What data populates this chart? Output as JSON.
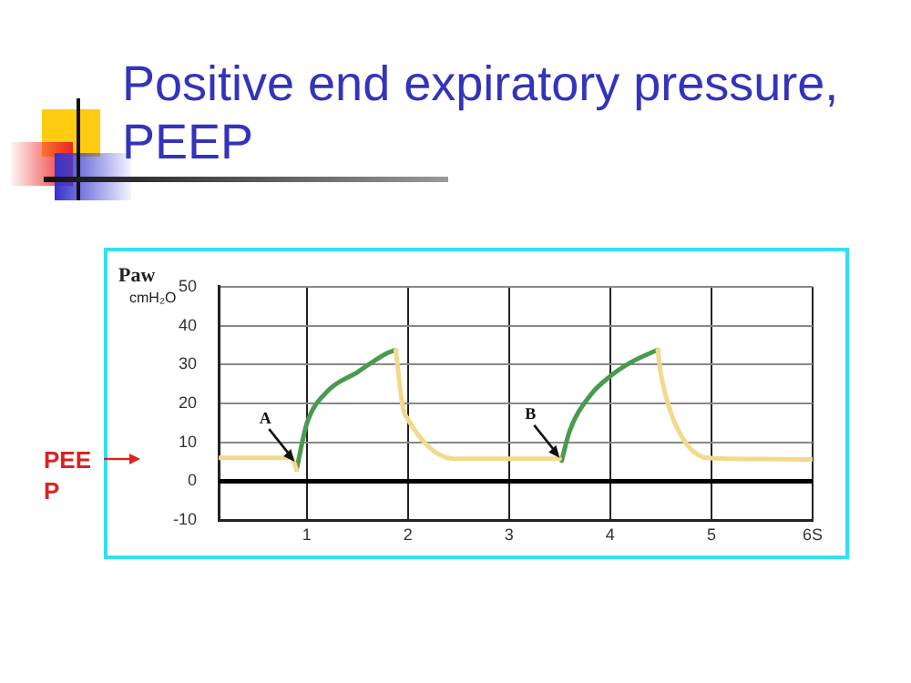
{
  "chart_data": {
    "type": "line",
    "title": "Positive end expiratory pressure, PEEP",
    "ylabel": "Paw",
    "xlim": [
      0.13,
      6
    ],
    "xticks": [
      1,
      2,
      3,
      4,
      5,
      {
        "value": 6,
        "label": "6S"
      }
    ],
    "ylim": [
      -10,
      50
    ],
    "yticks": [
      -10,
      0,
      10,
      20,
      30,
      40,
      50
    ],
    "grid": true,
    "legend": false,
    "marker": "none",
    "line_style": "solid",
    "series": [
      {
        "color": "#f2d98c",
        "x": [
          0.13,
          0.85,
          0.88,
          0.9,
          1.4,
          1.88,
          1.95,
          2.0,
          2.1,
          2.2,
          2.3,
          2.45,
          3.0,
          3.5,
          4.0,
          4.47,
          4.5,
          4.6,
          4.7,
          4.8,
          4.95,
          5.5,
          6
        ],
        "values": [
          6,
          6,
          4.5,
          3,
          null,
          33.7,
          19,
          16,
          12,
          9,
          7,
          5.8,
          5.8,
          5.8,
          null,
          33.7,
          27.7,
          17.6,
          11.8,
          8.2,
          6,
          5.7,
          5.6
        ]
      },
      {
        "color": "#4a9a50",
        "x": [
          0.9,
          1.0,
          1.2,
          1.5,
          1.8,
          1.88,
          2.7,
          3.52,
          3.6,
          3.8,
          4.0,
          4.2,
          4.4,
          4.47
        ],
        "values": [
          3,
          14.7,
          23,
          28,
          33,
          33.7,
          null,
          5.3,
          13,
          22,
          27,
          30.5,
          33,
          33.7
        ]
      }
    ],
    "ref_lines": [
      {
        "axis": "y",
        "value": 0,
        "color": "#000000"
      }
    ],
    "annotations": [
      {
        "text": "A",
        "x": 0.88,
        "y": 5
      },
      {
        "text": "B",
        "x": 3.5,
        "y": 6
      },
      "cmH₂O",
      "PEEP"
    ]
  }
}
